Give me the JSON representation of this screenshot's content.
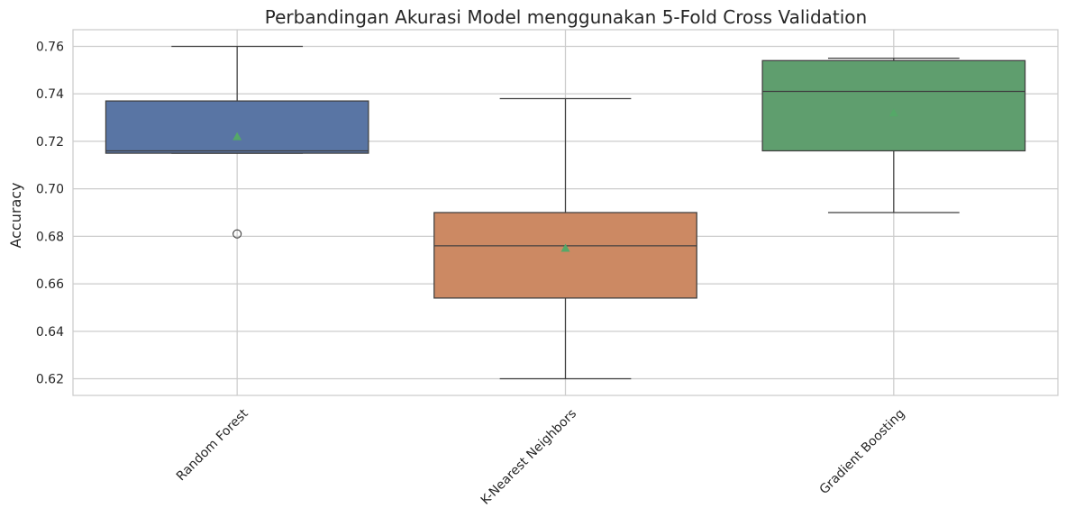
{
  "chart_data": {
    "type": "box",
    "title": "Perbandingan Akurasi Model menggunakan 5-Fold Cross Validation",
    "xlabel": "",
    "ylabel": "Accuracy",
    "ylim": [
      0.613,
      0.767
    ],
    "yticks": [
      "0.62",
      "0.64",
      "0.66",
      "0.68",
      "0.70",
      "0.72",
      "0.74",
      "0.76"
    ],
    "grid": true,
    "x_tick_rotation_deg": 45,
    "mean_marker_color": "#55a868",
    "categories": [
      "Random Forest",
      "K-Nearest Neighbors",
      "Gradient Boosting"
    ],
    "boxes": [
      {
        "category": "Random Forest",
        "color": "#5975a4",
        "whisker_low": 0.715,
        "q1": 0.715,
        "median": 0.716,
        "q3": 0.737,
        "whisker_high": 0.76,
        "mean": 0.722,
        "outliers": [
          0.681
        ]
      },
      {
        "category": "K-Nearest Neighbors",
        "color": "#cc8963",
        "whisker_low": 0.62,
        "q1": 0.654,
        "median": 0.676,
        "q3": 0.69,
        "whisker_high": 0.738,
        "mean": 0.675,
        "outliers": []
      },
      {
        "category": "Gradient Boosting",
        "color": "#5f9e6e",
        "whisker_low": 0.69,
        "q1": 0.716,
        "median": 0.741,
        "q3": 0.754,
        "whisker_high": 0.755,
        "mean": 0.732,
        "outliers": []
      }
    ]
  }
}
